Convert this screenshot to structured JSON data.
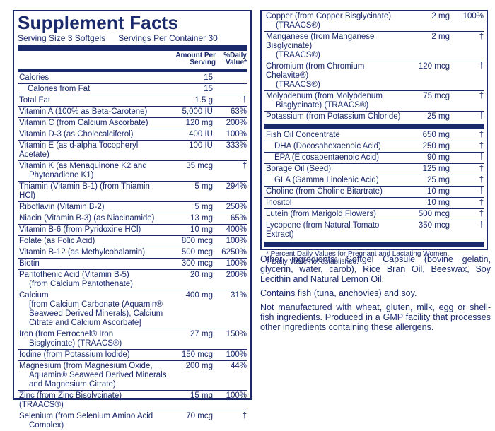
{
  "title": "Supplement Facts",
  "serving": {
    "size": "Serving Size 3 Softgels",
    "per_container": "Servings Per Container 30"
  },
  "columns": {
    "amount": "Amount Per Serving",
    "dv": "%Daily Value*"
  },
  "left_rows": [
    {
      "name": "Calories",
      "amount": "15",
      "dv": ""
    },
    {
      "name": "Calories from Fat",
      "amount": "15",
      "dv": "",
      "indent": true
    },
    {
      "name": "Total Fat",
      "amount": "1.5 g",
      "dv": "†"
    },
    {
      "name": "Vitamin A (100% as Beta-Carotene)",
      "amount": "5,000 IU",
      "dv": "63%"
    },
    {
      "name": "Vitamin C (from Calcium Ascorbate)",
      "amount": "120 mg",
      "dv": "200%"
    },
    {
      "name": "Vitamin D-3 (as Cholecalciferol)",
      "amount": "400 IU",
      "dv": "100%"
    },
    {
      "name": "Vitamin E (as d-alpha Tocopheryl Acetate)",
      "amount": "100 IU",
      "dv": "333%"
    },
    {
      "name": "Vitamin K (as Menaquinone K2 and",
      "sub": "Phytonadione K1)",
      "amount": "35 mcg",
      "dv": "†"
    },
    {
      "name": "Thiamin (Vitamin B-1) (from Thiamin HCl)",
      "amount": "5 mg",
      "dv": "294%"
    },
    {
      "name": "Riboflavin (Vitamin B-2)",
      "amount": "5 mg",
      "dv": "250%"
    },
    {
      "name": "Niacin (Vitamin B-3) (as Niacinamide)",
      "amount": "13 mg",
      "dv": "65%"
    },
    {
      "name": "Vitamin B-6 (from Pyridoxine HCl)",
      "amount": "10 mg",
      "dv": "400%"
    },
    {
      "name": "Folate (as Folic Acid)",
      "amount": "800 mcg",
      "dv": "100%"
    },
    {
      "name": "Vitamin B-12 (as Methylcobalamin)",
      "amount": "500 mcg",
      "dv": "6250%"
    },
    {
      "name": "Biotin",
      "amount": "300 mcg",
      "dv": "100%"
    },
    {
      "name": "Pantothenic Acid (Vitamin B-5)",
      "sub": "(from Calcium Pantothenate)",
      "amount": "20 mg",
      "dv": "200%"
    },
    {
      "name": "Calcium",
      "sub": "[from Calcium Carbonate (Aquamin® Seaweed Derived Minerals), Calcium Citrate and Calcium Ascorbate]",
      "amount": "400 mg",
      "dv": "31%"
    },
    {
      "name": "Iron (from Ferrochel® Iron",
      "sub": "Bisglycinate) (TRAACS®)",
      "amount": "27 mg",
      "dv": "150%"
    },
    {
      "name": "Iodine (from Potassium Iodide)",
      "amount": "150 mcg",
      "dv": "100%"
    },
    {
      "name": "Magnesium (from Magnesium Oxide,",
      "sub": "Aquamin® Seaweed Derived Minerals and Magnesium Citrate)",
      "amount": "200 mg",
      "dv": "44%"
    },
    {
      "name": "Zinc (from Zinc Bisglycinate) (TRAACS®)",
      "amount": "15 mg",
      "dv": "100%"
    },
    {
      "name": "Selenium (from Selenium Amino Acid",
      "sub": "Complex)",
      "amount": "70 mcg",
      "dv": "†"
    }
  ],
  "right_rows": [
    {
      "name": "Copper (from Copper Bisglycinate)",
      "sub": "(TRAACS®)",
      "amount": "2 mg",
      "dv": "100%"
    },
    {
      "name": "Manganese (from Manganese Bisglycinate)",
      "sub": "(TRAACS®)",
      "amount": "2 mg",
      "dv": "†"
    },
    {
      "name": "Chromium (from Chromium Chelavite®)",
      "sub": "(TRAACS®)",
      "amount": "120 mcg",
      "dv": "†"
    },
    {
      "name": "Molybdenum (from Molybdenum",
      "sub": "Bisglycinate) (TRAACS®)",
      "amount": "75 mcg",
      "dv": "†"
    },
    {
      "name": "Potassium (from Potassium Chloride)",
      "amount": "25 mg",
      "dv": "†"
    }
  ],
  "right_rows_2": [
    {
      "name": "Fish Oil Concentrate",
      "amount": "650 mg",
      "dv": "†"
    },
    {
      "name": "DHA (Docosahexaenoic Acid)",
      "amount": "250 mg",
      "dv": "†",
      "indent": true
    },
    {
      "name": "EPA (Eicosapentaenoic Acid)",
      "amount": "90 mg",
      "dv": "†",
      "indent": true
    },
    {
      "name": "Borage Oil (Seed)",
      "amount": "125 mg",
      "dv": "†"
    },
    {
      "name": "GLA (Gamma Linolenic Acid)",
      "amount": "25 mg",
      "dv": "†",
      "indent": true
    },
    {
      "name": "Choline (from Choline Bitartrate)",
      "amount": "10 mg",
      "dv": "†"
    },
    {
      "name": "Inositol",
      "amount": "10 mg",
      "dv": "†"
    },
    {
      "name": "Lutein (from Marigold Flowers)",
      "amount": "500 mcg",
      "dv": "†"
    },
    {
      "name": "Lycopene (from Natural Tomato Extract)",
      "amount": "350 mcg",
      "dv": "†"
    }
  ],
  "footnotes": [
    "* Percent Daily Values for Pregnant and Lactating Women.",
    "† Daily Value not established."
  ],
  "other_ingredients": "Other ingredients: Softgel Capsule (bovine gelatin, glycerin, water, carob), Rice Bran Oil, Beeswax, Soy Lecithin and Natural Lemon Oil.",
  "allergen": "Contains fish (tuna, anchovies) and soy.",
  "manufacturing": "Not manufactured with wheat, gluten, milk, egg or shell-fish ingredients. Produced in a GMP facility that processes other ingredients containing these allergens."
}
